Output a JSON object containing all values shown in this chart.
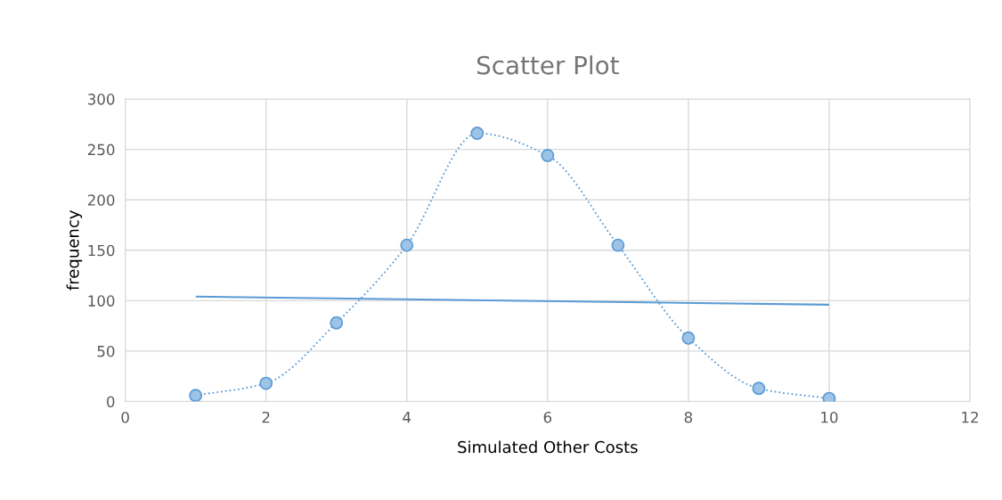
{
  "chart_data": {
    "type": "line",
    "title": "Scatter Plot",
    "xlabel": "Simulated Other Costs",
    "ylabel": "frequency",
    "series": [
      {
        "color": "#5b9bd5",
        "marker": "circle",
        "line_style": "dotted",
        "x": [
          1,
          2,
          3,
          4,
          5,
          6,
          7,
          8,
          9,
          10
        ],
        "values": [
          6,
          18,
          78,
          155,
          266,
          244,
          155,
          63,
          13,
          3
        ]
      },
      {
        "color": "#5b9bd5",
        "marker": "none",
        "line_style": "solid",
        "x": [
          1,
          10
        ],
        "values": [
          104,
          96
        ]
      }
    ],
    "xlim": [
      0,
      12
    ],
    "xticks": [
      0,
      2,
      4,
      6,
      8,
      10,
      12
    ],
    "ylim": [
      0,
      300
    ],
    "yticks": [
      0,
      50,
      100,
      150,
      200,
      250,
      300
    ],
    "grid": true
  }
}
